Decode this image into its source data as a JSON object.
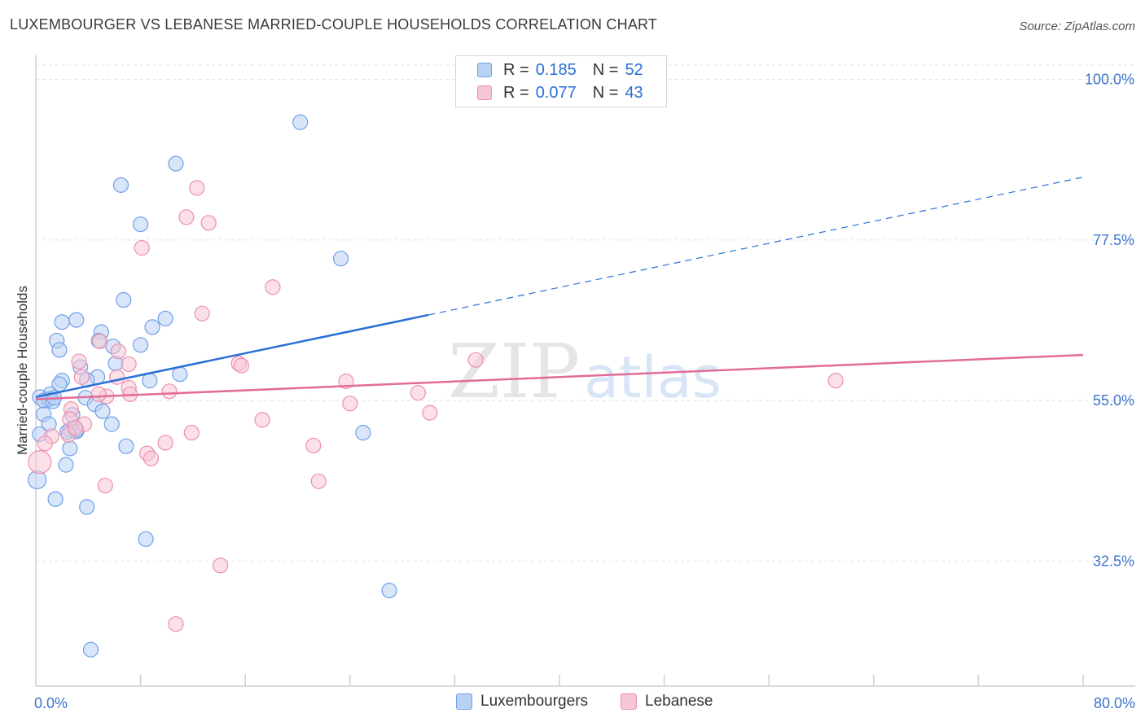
{
  "header": {
    "title": "LUXEMBOURGER VS LEBANESE MARRIED-COUPLE HOUSEHOLDS CORRELATION CHART",
    "source": "Source: ZipAtlas.com"
  },
  "watermark": {
    "part1": "ZIP",
    "part2": "atlas"
  },
  "legend": {
    "rows": [
      {
        "r_label": "R =",
        "r_value": "0.185",
        "n_label": "N =",
        "n_value": "52",
        "color": "#6fa0e8"
      },
      {
        "r_label": "R =",
        "r_value": "0.077",
        "n_label": "N =",
        "n_value": "43",
        "color": "#ee8fb0"
      }
    ]
  },
  "bottom_legend": [
    "Luxembourgers",
    "Lebanese"
  ],
  "chart_data": {
    "type": "scatter",
    "title": "LUXEMBOURGER VS LEBANESE MARRIED-COUPLE HOUSEHOLDS CORRELATION CHART",
    "xlabel": "",
    "ylabel": "Married-couple Households",
    "xlim": [
      0,
      80
    ],
    "ylim": [
      15,
      102
    ],
    "x_tick_labels": [
      "0.0%",
      "80.0%"
    ],
    "y_ticks": [
      32.5,
      55.0,
      77.5,
      100.0
    ],
    "y_tick_labels": [
      "32.5%",
      "55.0%",
      "77.5%",
      "100.0%"
    ],
    "grid": true,
    "legend_position": "top-center",
    "series": [
      {
        "name": "Luxembourgers",
        "color": "#6fa0e8",
        "trend": {
          "x0": 0,
          "y0": 55.5,
          "x1": 30,
          "y1": 67.0,
          "dash_x1": 80,
          "dash_y1": 86.3
        },
        "points": [
          [
            20.2,
            94.0
          ],
          [
            10.7,
            88.2
          ],
          [
            6.5,
            85.2
          ],
          [
            8.0,
            79.7
          ],
          [
            23.3,
            74.9
          ],
          [
            6.7,
            69.1
          ],
          [
            3.1,
            66.3
          ],
          [
            9.9,
            66.5
          ],
          [
            2.0,
            66.0
          ],
          [
            8.9,
            65.3
          ],
          [
            5.0,
            64.6
          ],
          [
            4.8,
            63.4
          ],
          [
            1.6,
            63.4
          ],
          [
            5.9,
            62.6
          ],
          [
            8.0,
            62.8
          ],
          [
            1.8,
            62.1
          ],
          [
            6.1,
            60.2
          ],
          [
            3.4,
            59.7
          ],
          [
            11.0,
            58.7
          ],
          [
            4.7,
            58.3
          ],
          [
            3.9,
            57.9
          ],
          [
            2.0,
            57.8
          ],
          [
            8.7,
            57.8
          ],
          [
            1.8,
            57.3
          ],
          [
            1.1,
            55.9
          ],
          [
            0.3,
            55.5
          ],
          [
            1.0,
            55.2
          ],
          [
            0.6,
            55.0
          ],
          [
            1.3,
            54.9
          ],
          [
            3.8,
            55.4
          ],
          [
            4.5,
            54.5
          ],
          [
            5.1,
            53.5
          ],
          [
            2.8,
            53.0
          ],
          [
            0.6,
            53.1
          ],
          [
            1.0,
            51.7
          ],
          [
            5.8,
            51.7
          ],
          [
            2.6,
            50.9
          ],
          [
            3.1,
            50.7
          ],
          [
            2.4,
            50.6
          ],
          [
            25.0,
            50.5
          ],
          [
            0.3,
            50.3
          ],
          [
            2.6,
            48.3
          ],
          [
            6.9,
            48.6
          ],
          [
            2.3,
            46.0
          ],
          [
            0.1,
            43.9
          ],
          [
            1.5,
            41.2
          ],
          [
            3.9,
            40.1
          ],
          [
            8.4,
            35.6
          ],
          [
            27.0,
            28.4
          ],
          [
            4.2,
            20.1
          ],
          [
            3.1,
            50.9
          ],
          [
            1.4,
            55.4
          ]
        ]
      },
      {
        "name": "Lebanese",
        "color": "#ee8fb0",
        "trend": {
          "x0": 0,
          "y0": 55.2,
          "x1": 80,
          "y1": 61.4
        },
        "points": [
          [
            12.3,
            84.8
          ],
          [
            11.5,
            80.7
          ],
          [
            13.2,
            79.9
          ],
          [
            8.1,
            76.4
          ],
          [
            18.1,
            70.9
          ],
          [
            12.7,
            67.2
          ],
          [
            6.3,
            61.9
          ],
          [
            4.9,
            63.3
          ],
          [
            3.3,
            60.5
          ],
          [
            7.1,
            60.1
          ],
          [
            15.5,
            60.2
          ],
          [
            15.7,
            59.9
          ],
          [
            33.6,
            60.7
          ],
          [
            6.2,
            58.3
          ],
          [
            3.5,
            58.3
          ],
          [
            7.1,
            56.8
          ],
          [
            10.2,
            56.3
          ],
          [
            23.7,
            57.7
          ],
          [
            61.1,
            57.8
          ],
          [
            5.4,
            55.6
          ],
          [
            4.8,
            55.9
          ],
          [
            7.2,
            55.9
          ],
          [
            29.2,
            56.1
          ],
          [
            24.0,
            54.6
          ],
          [
            2.7,
            53.8
          ],
          [
            2.6,
            52.4
          ],
          [
            30.1,
            53.3
          ],
          [
            17.3,
            52.3
          ],
          [
            3.7,
            51.7
          ],
          [
            2.5,
            50.2
          ],
          [
            1.2,
            50.0
          ],
          [
            11.9,
            50.5
          ],
          [
            9.9,
            49.1
          ],
          [
            21.2,
            48.7
          ],
          [
            0.7,
            49.0
          ],
          [
            8.5,
            47.6
          ],
          [
            8.8,
            46.9
          ],
          [
            0.3,
            46.4
          ],
          [
            21.6,
            43.7
          ],
          [
            5.3,
            43.1
          ],
          [
            14.1,
            31.9
          ],
          [
            10.7,
            23.7
          ],
          [
            3.0,
            51.2
          ]
        ]
      }
    ]
  }
}
